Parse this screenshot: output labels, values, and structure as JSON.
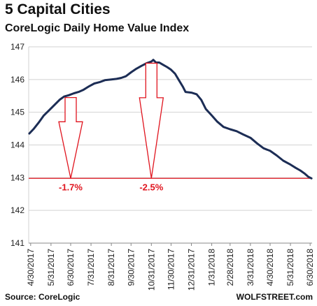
{
  "title": "5 Capital Cities",
  "subtitle": "CoreLogic Daily Home Value Index",
  "source": "Source: CoreLogic",
  "brand": "WOLFSTREET.com",
  "colors": {
    "line": "#1c2d55",
    "accent": "#e0141e",
    "grid": "#d2d2d2"
  },
  "chart_data": {
    "type": "line",
    "title": "CoreLogic Daily Home Value Index",
    "xlabel": "",
    "ylabel": "",
    "ylim": [
      141,
      147
    ],
    "yticks": [
      141,
      142,
      143,
      144,
      145,
      146,
      147
    ],
    "grid": true,
    "x_tick_labels": [
      "4/30/2017",
      "5/31/2017",
      "6/30/2017",
      "7/31/2017",
      "8/31/2017",
      "9/30/2017",
      "10/31/2017",
      "11/30/2017",
      "12/31/2017",
      "1/31/2018",
      "2/28/2018",
      "3/31/2018",
      "4/30/2018",
      "5/31/2018",
      "6/30/2018"
    ],
    "series": [
      {
        "points": [
          [
            "2017-04-28",
            144.35
          ],
          [
            "2017-05-05",
            144.5
          ],
          [
            "2017-05-12",
            144.68
          ],
          [
            "2017-05-20",
            144.9
          ],
          [
            "2017-05-28",
            145.06
          ],
          [
            "2017-06-05",
            145.22
          ],
          [
            "2017-06-13",
            145.38
          ],
          [
            "2017-06-20",
            145.48
          ],
          [
            "2017-06-27",
            145.52
          ],
          [
            "2017-07-05",
            145.58
          ],
          [
            "2017-07-12",
            145.62
          ],
          [
            "2017-07-19",
            145.68
          ],
          [
            "2017-07-27",
            145.78
          ],
          [
            "2017-08-05",
            145.88
          ],
          [
            "2017-08-13",
            145.92
          ],
          [
            "2017-08-21",
            145.98
          ],
          [
            "2017-08-31",
            146.0
          ],
          [
            "2017-09-08",
            146.02
          ],
          [
            "2017-09-15",
            146.05
          ],
          [
            "2017-09-22",
            146.1
          ],
          [
            "2017-09-30",
            146.22
          ],
          [
            "2017-10-08",
            146.33
          ],
          [
            "2017-10-16",
            146.42
          ],
          [
            "2017-10-24",
            146.5
          ],
          [
            "2017-10-31",
            146.55
          ],
          [
            "2017-11-03",
            146.6
          ],
          [
            "2017-11-07",
            146.52
          ],
          [
            "2017-11-12",
            146.52
          ],
          [
            "2017-11-17",
            146.46
          ],
          [
            "2017-11-24",
            146.38
          ],
          [
            "2017-11-30",
            146.3
          ],
          [
            "2017-12-06",
            146.18
          ],
          [
            "2017-12-12",
            145.98
          ],
          [
            "2017-12-18",
            145.78
          ],
          [
            "2017-12-22",
            145.62
          ],
          [
            "2017-12-31",
            145.6
          ],
          [
            "2018-01-08",
            145.55
          ],
          [
            "2018-01-15",
            145.38
          ],
          [
            "2018-01-22",
            145.1
          ],
          [
            "2018-01-31",
            144.9
          ],
          [
            "2018-02-08",
            144.72
          ],
          [
            "2018-02-18",
            144.55
          ],
          [
            "2018-02-28",
            144.48
          ],
          [
            "2018-03-10",
            144.42
          ],
          [
            "2018-03-20",
            144.32
          ],
          [
            "2018-03-31",
            144.22
          ],
          [
            "2018-04-10",
            144.05
          ],
          [
            "2018-04-20",
            143.9
          ],
          [
            "2018-04-30",
            143.82
          ],
          [
            "2018-05-10",
            143.68
          ],
          [
            "2018-05-20",
            143.52
          ],
          [
            "2018-05-31",
            143.4
          ],
          [
            "2018-06-08",
            143.3
          ],
          [
            "2018-06-15",
            143.22
          ],
          [
            "2018-06-22",
            143.12
          ],
          [
            "2018-06-27",
            143.03
          ],
          [
            "2018-07-02",
            142.98
          ]
        ]
      }
    ],
    "reference_line": {
      "y": 142.98
    },
    "annotations": [
      {
        "text": "-1.7%",
        "arrow_x": "2017-06-30",
        "arrow_from": 145.45,
        "arrow_to": 142.98
      },
      {
        "text": "-2.5%",
        "arrow_x": "2017-10-31",
        "arrow_from": 146.5,
        "arrow_to": 142.98
      }
    ]
  }
}
